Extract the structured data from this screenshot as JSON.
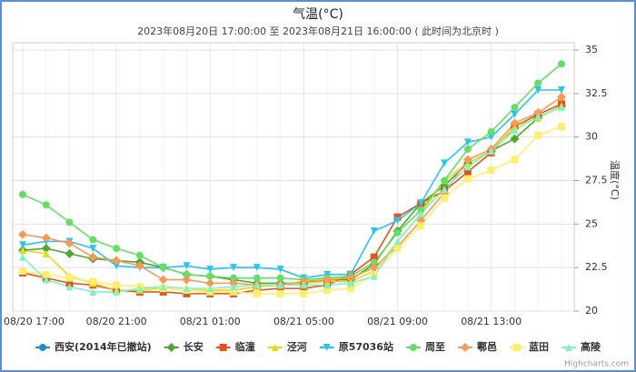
{
  "chart_data": {
    "type": "line",
    "title": "气温(°C)",
    "subtitle": "2023年08月20日 17:00:00 至 2023年08月21日 16:00:00 ( 此时间为北京时 )",
    "y_label": "温度(°C)",
    "credit": "Highcharts.com",
    "categories": [
      "08/20 17:00",
      null,
      null,
      null,
      "08/20 21:00",
      null,
      null,
      null,
      "08/21 01:00",
      null,
      null,
      null,
      "08/21 05:00",
      null,
      null,
      null,
      "08/21 09:00",
      null,
      null,
      null,
      "08/21 13:00",
      null,
      null,
      null
    ],
    "ylim": [
      20,
      35
    ],
    "yticks": [
      20,
      22.5,
      25,
      27.5,
      30,
      32.5,
      35
    ],
    "grid": true,
    "legend": "bottom",
    "series": [
      {
        "name": "西安(2014年已撤站)",
        "color": "#1f8ecd",
        "marker": "circle",
        "values": [
          null,
          null,
          null,
          null,
          null,
          null,
          null,
          null,
          null,
          null,
          null,
          null,
          null,
          null,
          null,
          null,
          null,
          null,
          null,
          null,
          null,
          null,
          null,
          null
        ]
      },
      {
        "name": "长安",
        "color": "#4da82d",
        "marker": "diamond",
        "values": [
          23.5,
          23.6,
          23.3,
          23.0,
          22.9,
          22.8,
          22.5,
          22.1,
          22.0,
          21.8,
          21.6,
          21.6,
          21.6,
          21.8,
          21.8,
          22.7,
          24.6,
          26.2,
          27.2,
          28.5,
          29.2,
          29.9,
          31.1,
          31.8
        ]
      },
      {
        "name": "临潼",
        "color": "#e4521b",
        "marker": "square",
        "values": [
          22.2,
          21.9,
          21.6,
          21.5,
          21.2,
          21.1,
          21.1,
          21.0,
          21.0,
          21.0,
          21.2,
          21.3,
          21.3,
          21.5,
          22.1,
          23.1,
          25.4,
          26.2,
          26.9,
          28.0,
          29.1,
          30.6,
          31.3,
          31.9
        ]
      },
      {
        "name": "泾河",
        "color": "#e2d91d",
        "marker": "triangle",
        "values": [
          23.5,
          23.3,
          22.0,
          21.6,
          21.2,
          21.2,
          21.3,
          21.2,
          21.2,
          21.2,
          21.4,
          21.5,
          21.6,
          21.7,
          21.7,
          22.3,
          24.0,
          25.6,
          27.5,
          28.5,
          29.2,
          30.6,
          31.1,
          31.8
        ]
      },
      {
        "name": "原57036站",
        "color": "#2ac4ea",
        "marker": "triangle-down",
        "values": [
          23.8,
          24.0,
          24.0,
          23.6,
          22.6,
          22.5,
          22.5,
          22.6,
          22.4,
          22.5,
          22.5,
          22.4,
          21.9,
          22.1,
          22.1,
          24.6,
          25.2,
          26.2,
          28.5,
          29.7,
          30.0,
          31.3,
          32.7,
          32.7
        ]
      },
      {
        "name": "周至",
        "color": "#66dd66",
        "marker": "circle",
        "values": [
          26.7,
          26.1,
          25.1,
          24.1,
          23.6,
          23.2,
          22.5,
          22.1,
          22.0,
          21.9,
          21.9,
          21.9,
          21.8,
          21.9,
          22.0,
          22.8,
          24.5,
          25.8,
          27.5,
          29.3,
          30.3,
          31.7,
          33.1,
          34.2
        ]
      },
      {
        "name": "鄠邑",
        "color": "#f7995b",
        "marker": "diamond",
        "values": [
          24.4,
          24.2,
          23.9,
          23.1,
          22.9,
          22.6,
          21.8,
          21.8,
          21.6,
          21.6,
          21.5,
          21.5,
          21.7,
          21.8,
          21.9,
          22.5,
          23.7,
          25.2,
          26.8,
          28.7,
          29.3,
          30.8,
          31.4,
          32.3
        ]
      },
      {
        "name": "蓝田",
        "color": "#fdef6b",
        "marker": "square",
        "values": [
          22.3,
          22.1,
          21.9,
          21.7,
          21.5,
          21.4,
          21.3,
          21.2,
          21.1,
          21.1,
          21.0,
          21.0,
          21.0,
          21.2,
          21.3,
          22.1,
          23.6,
          24.9,
          26.5,
          27.6,
          28.1,
          28.7,
          30.1,
          30.6
        ]
      },
      {
        "name": "高陵",
        "color": "#7ff2c6",
        "marker": "triangle",
        "values": [
          23.1,
          21.8,
          21.4,
          21.1,
          21.1,
          21.3,
          21.4,
          21.3,
          21.3,
          21.4,
          21.5,
          21.5,
          21.5,
          21.5,
          21.6,
          22.0,
          24.0,
          25.6,
          27.0,
          28.3,
          29.2,
          30.4,
          31.2,
          31.7
        ]
      }
    ]
  }
}
